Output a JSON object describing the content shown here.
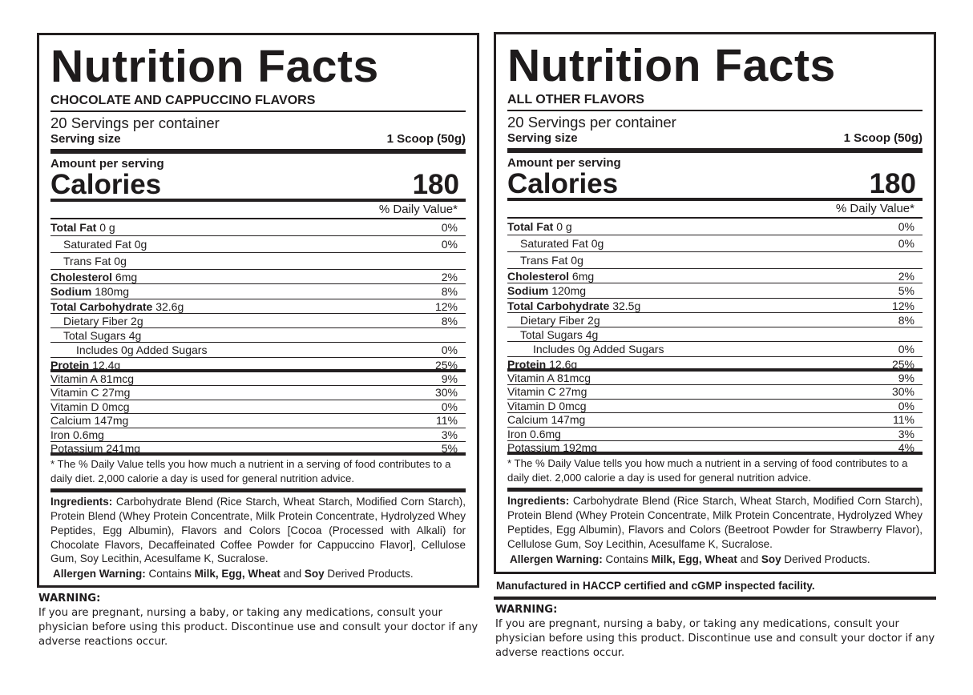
{
  "panels": [
    {
      "title": "Nutrition Facts",
      "subtitle": "CHOCOLATE AND CAPPUCCINO FLAVORS",
      "servings": "20 Servings per container",
      "serving_size_label": "Serving size",
      "serving_size": "1 Scoop (50g)",
      "amount_label": "Amount per serving",
      "calories_label": "Calories",
      "calories": "180",
      "dv_header": "% Daily Value*",
      "rows": [
        {
          "name": "Total Fat",
          "amount": "0 g",
          "dv": "0%",
          "bold": true,
          "indent": 0,
          "size": "tall"
        },
        {
          "name": "Saturated Fat",
          "amount": "0g",
          "dv": "0%",
          "bold": false,
          "indent": 1,
          "size": "tall"
        },
        {
          "name": "Trans Fat",
          "amount": "0g",
          "dv": "",
          "bold": false,
          "indent": 1,
          "size": "tall"
        },
        {
          "name": "Cholesterol",
          "amount": "6mg",
          "dv": "2%",
          "bold": true,
          "indent": 0,
          "size": "mid"
        },
        {
          "name": "Sodium",
          "amount": "180mg",
          "dv": "8%",
          "bold": true,
          "indent": 0,
          "size": "mid"
        },
        {
          "name": "Total Carbohydrate",
          "amount": "32.6g",
          "dv": "12%",
          "bold": true,
          "indent": 0,
          "size": "mid"
        },
        {
          "name": "Dietary Fiber",
          "amount": "2g",
          "dv": "8%",
          "bold": false,
          "indent": 1,
          "size": "mid"
        },
        {
          "name": "Total Sugars",
          "amount": "4g",
          "dv": "",
          "bold": false,
          "indent": 1,
          "size": "mid"
        },
        {
          "name": "Includes 0g Added Sugars",
          "amount": "",
          "dv": "0%",
          "bold": false,
          "indent": 2,
          "size": "mid"
        },
        {
          "name": "Protein",
          "amount": "12.4g",
          "dv": "25%",
          "bold": true,
          "indent": 0,
          "size": "mid",
          "thick": true
        },
        {
          "name": "Vitamin A",
          "amount": "81mcg",
          "dv": "9%",
          "bold": false,
          "indent": 0,
          "size": "vit"
        },
        {
          "name": "Vitamin C",
          "amount": "27mg",
          "dv": "30%",
          "bold": false,
          "indent": 0,
          "size": "vit"
        },
        {
          "name": "Vitamin D",
          "amount": "0mcg",
          "dv": "0%",
          "bold": false,
          "indent": 0,
          "size": "vit"
        },
        {
          "name": "Calcium",
          "amount": "147mg",
          "dv": "11%",
          "bold": false,
          "indent": 0,
          "size": "vit"
        },
        {
          "name": "Iron",
          "amount": "0.6mg",
          "dv": "3%",
          "bold": false,
          "indent": 0,
          "size": "vit"
        },
        {
          "name": "Potassium",
          "amount": "241mg",
          "dv": "5%",
          "bold": false,
          "indent": 0,
          "size": "vit",
          "thick": true
        }
      ],
      "footnote": "* The % Daily Value tells you how much a nutrient in a serving of food contributes to a daily diet. 2,000 calorie a day is used for general nutrition advice.",
      "ingredients_label": "Ingredients:",
      "ingredients": "Carbohydrate Blend (Rice Starch, Wheat Starch, Modified Corn Starch), Protein Blend (Whey Protein Concentrate, Milk Protein Concentrate, Hydrolyzed Whey Peptides, Egg Albumin), Flavors and Colors [Cocoa (Processed with Alkali) for Chocolate Flavors, Decaffeinated Coffee Powder for Cappuccino Flavor], Cellulose Gum, Soy Lecithin, Acesulfame K, Sucralose.",
      "allergen_label": "Allergen Warning:",
      "allergen_parts": [
        "Contains ",
        "Milk, Egg, Wheat",
        " and ",
        "Soy",
        " Derived Products."
      ],
      "manufactured": "",
      "warning_title": "WARNING:",
      "warning_text": "If you are pregnant, nursing a baby, or taking any medications, consult your physician before using this product. Discontinue use and consult your doctor if any adverse reactions occur."
    },
    {
      "title": "Nutrition Facts",
      "subtitle": "ALL OTHER FLAVORS",
      "servings": "20 Servings per container",
      "serving_size_label": "Serving size",
      "serving_size": "1 Scoop (50g)",
      "amount_label": "Amount per serving",
      "calories_label": "Calories",
      "calories": "180",
      "dv_header": "% Daily Value*",
      "rows": [
        {
          "name": "Total Fat",
          "amount": "0 g",
          "dv": "0%",
          "bold": true,
          "indent": 0,
          "size": "tall"
        },
        {
          "name": "Saturated Fat",
          "amount": "0g",
          "dv": "0%",
          "bold": false,
          "indent": 1,
          "size": "tall"
        },
        {
          "name": "Trans Fat",
          "amount": "0g",
          "dv": "",
          "bold": false,
          "indent": 1,
          "size": "tall"
        },
        {
          "name": "Cholesterol",
          "amount": "6mg",
          "dv": "2%",
          "bold": true,
          "indent": 0,
          "size": "mid"
        },
        {
          "name": "Sodium",
          "amount": "120mg",
          "dv": "5%",
          "bold": true,
          "indent": 0,
          "size": "mid"
        },
        {
          "name": "Total Carbohydrate",
          "amount": "32.5g",
          "dv": "12%",
          "bold": true,
          "indent": 0,
          "size": "mid"
        },
        {
          "name": "Dietary Fiber",
          "amount": "2g",
          "dv": "8%",
          "bold": false,
          "indent": 1,
          "size": "mid"
        },
        {
          "name": "Total Sugars",
          "amount": "4g",
          "dv": "",
          "bold": false,
          "indent": 1,
          "size": "mid"
        },
        {
          "name": "Includes 0g Added Sugars",
          "amount": "",
          "dv": "0%",
          "bold": false,
          "indent": 2,
          "size": "mid"
        },
        {
          "name": "Protein",
          "amount": "12.6g",
          "dv": "25%",
          "bold": true,
          "indent": 0,
          "size": "mid",
          "thick": true
        },
        {
          "name": "Vitamin A",
          "amount": "81mcg",
          "dv": "9%",
          "bold": false,
          "indent": 0,
          "size": "vit"
        },
        {
          "name": "Vitamin C",
          "amount": "27mg",
          "dv": "30%",
          "bold": false,
          "indent": 0,
          "size": "vit"
        },
        {
          "name": "Vitamin D",
          "amount": "0mcg",
          "dv": "0%",
          "bold": false,
          "indent": 0,
          "size": "vit"
        },
        {
          "name": "Calcium",
          "amount": "147mg",
          "dv": "11%",
          "bold": false,
          "indent": 0,
          "size": "vit"
        },
        {
          "name": "Iron",
          "amount": "0.6mg",
          "dv": "3%",
          "bold": false,
          "indent": 0,
          "size": "vit"
        },
        {
          "name": "Potassium",
          "amount": "192mg",
          "dv": "4%",
          "bold": false,
          "indent": 0,
          "size": "vit",
          "thick": true
        }
      ],
      "footnote": "* The % Daily Value tells you how much a nutrient in a serving of food contributes to a daily diet. 2,000 calorie a day is used for general nutrition advice.",
      "ingredients_label": "Ingredients:",
      "ingredients": "Carbohydrate Blend (Rice Starch, Wheat Starch, Modified Corn Starch), Protein Blend (Whey Protein Concentrate, Milk Protein Concentrate, Hydrolyzed Whey Peptides, Egg Albumin), Flavors and Colors (Beetroot Powder for Strawberry Flavor), Cellulose Gum, Soy Lecithin, Acesulfame K, Sucralose.",
      "allergen_label": "Allergen Warning:",
      "allergen_parts": [
        "Contains ",
        "Milk, Egg, Wheat",
        " and ",
        "Soy",
        " Derived Products."
      ],
      "manufactured": "Manufactured in HACCP certified and cGMP inspected facility.",
      "warning_title": "WARNING:",
      "warning_text": "If you are pregnant, nursing a baby, or taking any medications, consult your physician before using this product. Discontinue use and consult your doctor if any adverse reactions occur."
    }
  ]
}
